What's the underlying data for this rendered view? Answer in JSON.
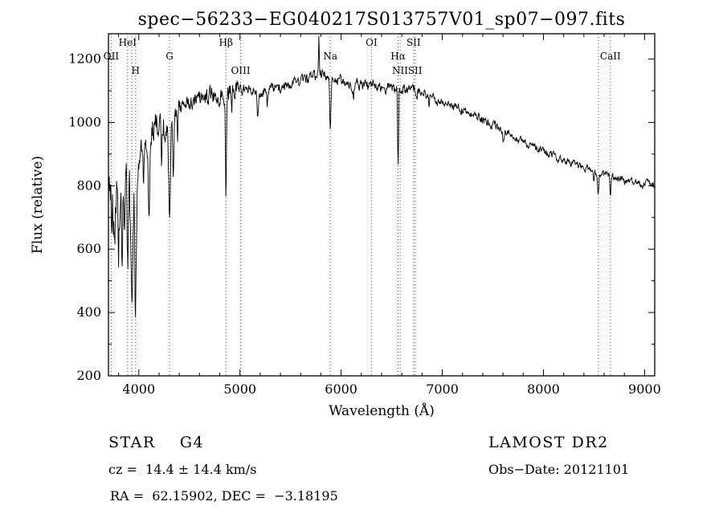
{
  "chart_data": {
    "type": "line",
    "title": "spec−56233−EG040217S013757V01_sp07−097.fits",
    "xlabel": "Wavelength (Å)",
    "ylabel": "Flux (relative)",
    "xlim": [
      3700,
      9100
    ],
    "ylim": [
      200,
      1280
    ],
    "xticks": [
      4000,
      5000,
      6000,
      7000,
      8000,
      9000
    ],
    "yticks": [
      200,
      400,
      600,
      800,
      1000,
      1200
    ],
    "grid": false,
    "legend": "none",
    "series_name": "stellar spectrum",
    "sample_step": 4,
    "envelope": [
      [
        3700,
        810
      ],
      [
        3740,
        720
      ],
      [
        3780,
        760
      ],
      [
        3820,
        700
      ],
      [
        3860,
        760
      ],
      [
        3900,
        740
      ],
      [
        3950,
        700
      ],
      [
        4000,
        880
      ],
      [
        4040,
        930
      ],
      [
        4080,
        900
      ],
      [
        4120,
        960
      ],
      [
        4160,
        1000
      ],
      [
        4200,
        1000
      ],
      [
        4250,
        990
      ],
      [
        4300,
        1000
      ],
      [
        4360,
        1030
      ],
      [
        4420,
        1050
      ],
      [
        4500,
        1060
      ],
      [
        4600,
        1075
      ],
      [
        4700,
        1085
      ],
      [
        4800,
        1085
      ],
      [
        4900,
        1100
      ],
      [
        5000,
        1105
      ],
      [
        5100,
        1105
      ],
      [
        5200,
        1095
      ],
      [
        5300,
        1105
      ],
      [
        5400,
        1115
      ],
      [
        5500,
        1115
      ],
      [
        5600,
        1125
      ],
      [
        5700,
        1140
      ],
      [
        5800,
        1155
      ],
      [
        5850,
        1145
      ],
      [
        5900,
        1135
      ],
      [
        6000,
        1130
      ],
      [
        6100,
        1120
      ],
      [
        6200,
        1120
      ],
      [
        6300,
        1115
      ],
      [
        6400,
        1115
      ],
      [
        6500,
        1110
      ],
      [
        6600,
        1105
      ],
      [
        6700,
        1105
      ],
      [
        6800,
        1095
      ],
      [
        6900,
        1075
      ],
      [
        7000,
        1065
      ],
      [
        7100,
        1055
      ],
      [
        7200,
        1040
      ],
      [
        7300,
        1025
      ],
      [
        7400,
        1010
      ],
      [
        7500,
        990
      ],
      [
        7600,
        975
      ],
      [
        7700,
        955
      ],
      [
        7800,
        940
      ],
      [
        7900,
        925
      ],
      [
        8000,
        910
      ],
      [
        8100,
        895
      ],
      [
        8200,
        880
      ],
      [
        8300,
        868
      ],
      [
        8400,
        858
      ],
      [
        8500,
        848
      ],
      [
        8600,
        838
      ],
      [
        8700,
        828
      ],
      [
        8800,
        818
      ],
      [
        8900,
        812
      ],
      [
        9000,
        806
      ],
      [
        9100,
        800
      ]
    ],
    "absorption_features": [
      {
        "center": 3760,
        "depth": 150,
        "width": 7
      },
      {
        "center": 3798,
        "depth": 190,
        "width": 7
      },
      {
        "center": 3835,
        "depth": 230,
        "width": 8
      },
      {
        "center": 3889,
        "depth": 210,
        "width": 8
      },
      {
        "center": 3933,
        "depth": 380,
        "width": 9
      },
      {
        "center": 3968,
        "depth": 340,
        "width": 9
      },
      {
        "center": 4045,
        "depth": 90,
        "width": 7
      },
      {
        "center": 4101,
        "depth": 210,
        "width": 9
      },
      {
        "center": 4227,
        "depth": 110,
        "width": 7
      },
      {
        "center": 4304,
        "depth": 270,
        "width": 13
      },
      {
        "center": 4340,
        "depth": 170,
        "width": 8
      },
      {
        "center": 4383,
        "depth": 90,
        "width": 7
      },
      {
        "center": 4861,
        "depth": 350,
        "width": 7
      },
      {
        "center": 4920,
        "depth": 60,
        "width": 6
      },
      {
        "center": 5175,
        "depth": 85,
        "width": 11
      },
      {
        "center": 5270,
        "depth": 55,
        "width": 8
      },
      {
        "center": 5893,
        "depth": 160,
        "width": 8
      },
      {
        "center": 6122,
        "depth": 40,
        "width": 7
      },
      {
        "center": 6563,
        "depth": 250,
        "width": 6
      },
      {
        "center": 6870,
        "depth": 30,
        "width": 7
      },
      {
        "center": 7605,
        "depth": 35,
        "width": 9
      },
      {
        "center": 8498,
        "depth": 45,
        "width": 7
      },
      {
        "center": 8542,
        "depth": 65,
        "width": 8
      },
      {
        "center": 8662,
        "depth": 60,
        "width": 8
      }
    ],
    "emission_spikes": [
      {
        "center": 5780,
        "height": 125,
        "width": 5
      }
    ],
    "noise_regions": [
      {
        "max_wl": 3990,
        "amplitude": 100
      },
      {
        "max_wl": 4350,
        "amplitude": 40
      },
      {
        "max_wl": 5000,
        "amplitude": 25
      },
      {
        "max_wl": 6800,
        "amplitude": 16
      },
      {
        "max_wl": 7600,
        "amplitude": 13
      },
      {
        "max_wl": 9100,
        "amplitude": 11
      }
    ],
    "line_markers": [
      {
        "label": "OII",
        "wavelength": 3727,
        "row": 1
      },
      {
        "label": "HeI",
        "wavelength": 3889,
        "row": 0
      },
      {
        "label": "",
        "wavelength": 3933,
        "row": 2
      },
      {
        "label": "H",
        "wavelength": 3968,
        "row": 2
      },
      {
        "label": "G",
        "wavelength": 4304,
        "row": 1
      },
      {
        "label": "Hβ",
        "wavelength": 4861,
        "row": 0
      },
      {
        "label": "OIII",
        "wavelength": 5007,
        "row": 2
      },
      {
        "label": "Na",
        "wavelength": 5893,
        "row": 1
      },
      {
        "label": "OI",
        "wavelength": 6300,
        "row": 0
      },
      {
        "label": "Hα",
        "wavelength": 6563,
        "row": 1
      },
      {
        "label": "NII",
        "wavelength": 6583,
        "row": 2
      },
      {
        "label": "SII",
        "wavelength": 6716,
        "row": 0
      },
      {
        "label": "SII",
        "wavelength": 6731,
        "row": 2
      },
      {
        "label": "",
        "wavelength": 8542,
        "row": 1
      },
      {
        "label": "CaII",
        "wavelength": 8662,
        "row": 1
      }
    ]
  },
  "footer": {
    "class_label": "STAR    G4",
    "survey": "LAMOST DR2",
    "cz": "cz =  14.4 ± 14.4 km/s",
    "obs_date": "Obs−Date: 20121101",
    "coords": "RA =  62.15902, DEC =  −3.18195"
  }
}
